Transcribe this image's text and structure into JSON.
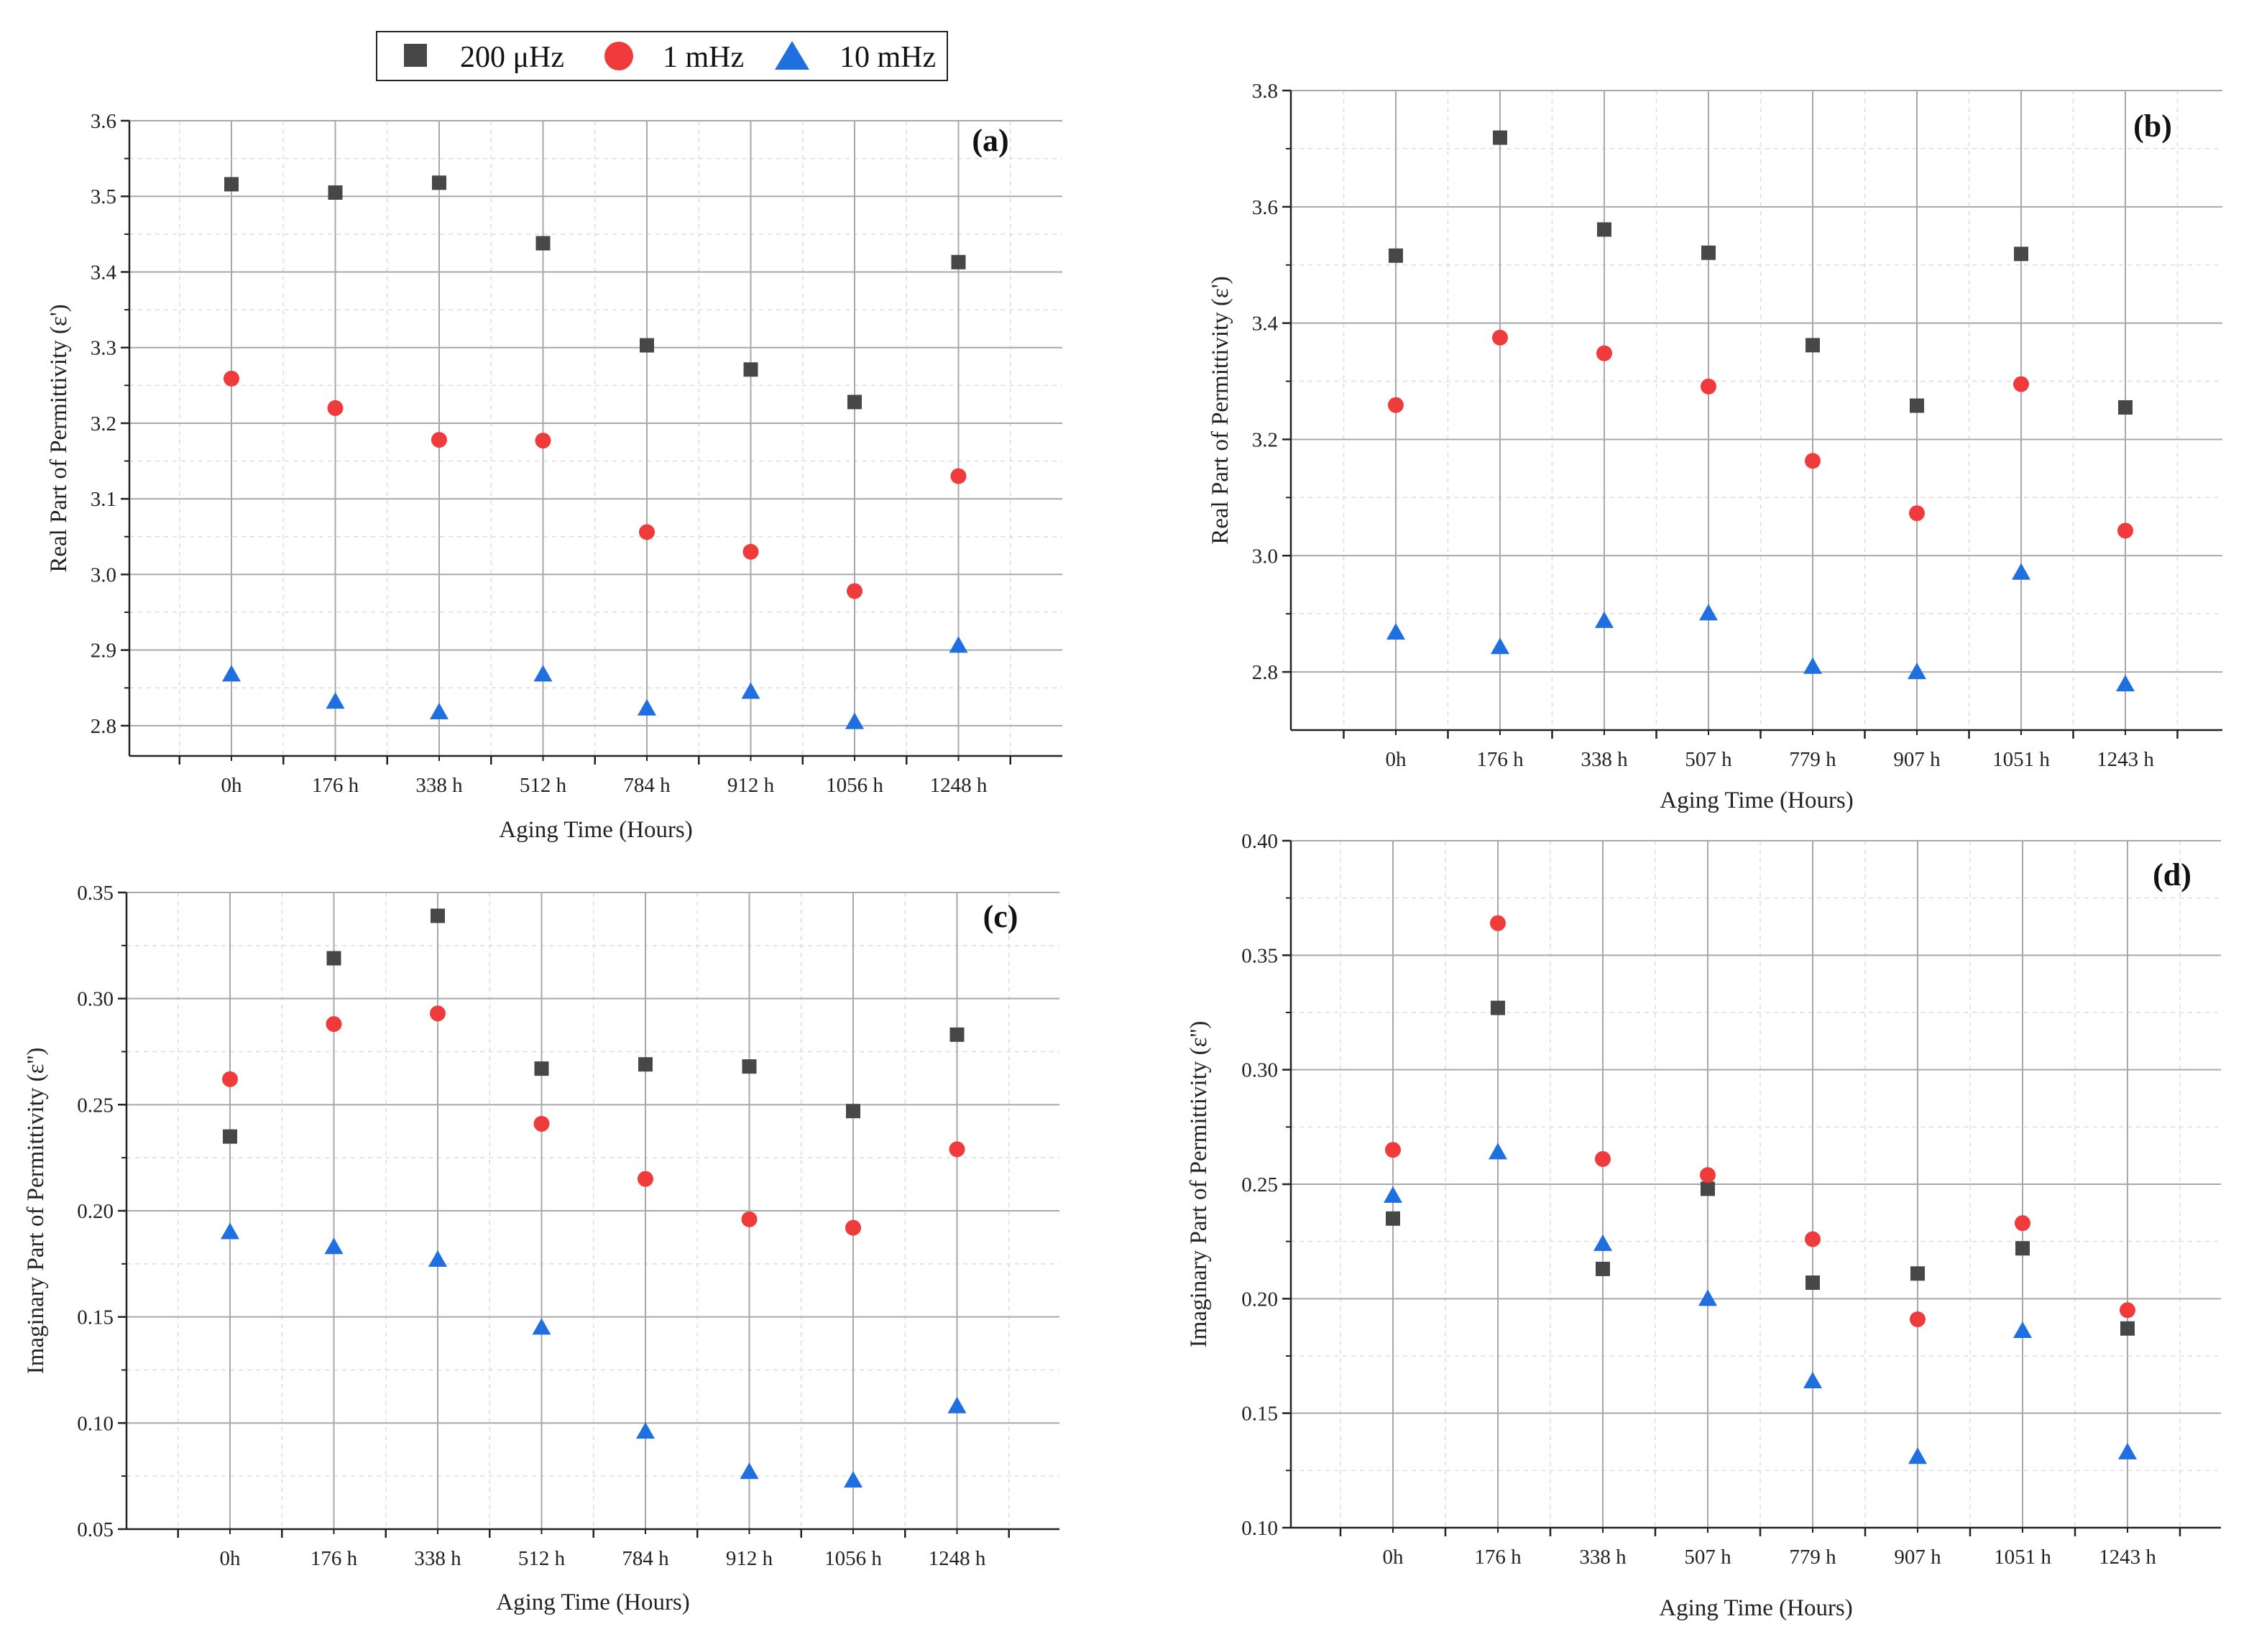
{
  "legend": {
    "items": [
      {
        "label": "200 μHz",
        "color": "#474747",
        "marker": "square"
      },
      {
        "label": "1 mHz",
        "color": "#ef3b3b",
        "marker": "circle"
      },
      {
        "label": "10 mHz",
        "color": "#1f6fe0",
        "marker": "triangle"
      }
    ]
  },
  "chart_data": [
    {
      "panel": "(a)",
      "type": "scatter",
      "xlabel": "Aging Time (Hours)",
      "ylabel": "Real Part of Permittivity (ε')",
      "categories": [
        "0h",
        "176 h",
        "338 h",
        "512 h",
        "784 h",
        "912 h",
        "1056 h",
        "1248 h"
      ],
      "ylim": [
        2.76,
        3.6
      ],
      "yticks": [
        2.8,
        2.9,
        3.0,
        3.1,
        3.2,
        3.3,
        3.4,
        3.5,
        3.6
      ],
      "ytick_labels": [
        "2.8",
        "2.9",
        "3.0",
        "3.1",
        "3.2",
        "3.3",
        "3.4",
        "3.5",
        "3.6"
      ],
      "series": [
        {
          "name": "200 μHz",
          "values": [
            3.516,
            3.505,
            3.518,
            3.438,
            3.303,
            3.271,
            3.228,
            3.413
          ]
        },
        {
          "name": "1 mHz",
          "values": [
            3.259,
            3.22,
            3.178,
            3.177,
            3.056,
            3.03,
            2.978,
            3.13
          ]
        },
        {
          "name": "10 mHz",
          "values": [
            2.868,
            2.832,
            2.818,
            2.868,
            2.823,
            2.845,
            2.805,
            2.906
          ]
        }
      ]
    },
    {
      "panel": "(b)",
      "type": "scatter",
      "xlabel": "Aging Time (Hours)",
      "ylabel": "Real Part of Permittivity (ε')",
      "categories": [
        "0h",
        "176 h",
        "338 h",
        "507 h",
        "779 h",
        "907 h",
        "1051 h",
        "1243 h"
      ],
      "ylim": [
        2.7,
        3.8
      ],
      "yticks": [
        2.8,
        3.0,
        3.2,
        3.4,
        3.6,
        3.8
      ],
      "ytick_labels": [
        "2.8",
        "3.0",
        "3.2",
        "3.4",
        "3.6",
        "3.8"
      ],
      "series": [
        {
          "name": "200 μHz",
          "values": [
            3.516,
            3.719,
            3.561,
            3.521,
            3.362,
            3.258,
            3.519,
            3.255
          ]
        },
        {
          "name": "1 mHz",
          "values": [
            3.259,
            3.375,
            3.348,
            3.291,
            3.163,
            3.073,
            3.295,
            3.043
          ]
        },
        {
          "name": "10 mHz",
          "values": [
            2.868,
            2.843,
            2.888,
            2.901,
            2.809,
            2.8,
            2.971,
            2.779
          ]
        }
      ]
    },
    {
      "panel": "(c)",
      "type": "scatter",
      "xlabel": "Aging Time (Hours)",
      "ylabel": "Imaginary Part of Permittivity (ε'')",
      "categories": [
        "0h",
        "176 h",
        "338 h",
        "512 h",
        "784 h",
        "912 h",
        "1056 h",
        "1248 h"
      ],
      "ylim": [
        0.05,
        0.35
      ],
      "yticks": [
        0.05,
        0.1,
        0.15,
        0.2,
        0.25,
        0.3,
        0.35
      ],
      "ytick_labels": [
        "0.05",
        "0.10",
        "0.15",
        "0.20",
        "0.25",
        "0.30",
        "0.35"
      ],
      "series": [
        {
          "name": "200 μHz",
          "values": [
            0.235,
            0.319,
            0.339,
            0.267,
            0.269,
            0.268,
            0.247,
            0.283
          ]
        },
        {
          "name": "1 mHz",
          "values": [
            0.262,
            0.288,
            0.293,
            0.241,
            0.215,
            0.196,
            0.192,
            0.229
          ]
        },
        {
          "name": "10 mHz",
          "values": [
            0.19,
            0.183,
            0.177,
            0.145,
            0.096,
            0.077,
            0.073,
            0.108
          ]
        }
      ]
    },
    {
      "panel": "(d)",
      "type": "scatter",
      "xlabel": "Aging Time (Hours)",
      "ylabel": "Imaginary Part of Permittivity (ε'')",
      "categories": [
        "0h",
        "176 h",
        "338 h",
        "507 h",
        "779 h",
        "907 h",
        "1051 h",
        "1243 h"
      ],
      "ylim": [
        0.1,
        0.4
      ],
      "yticks": [
        0.1,
        0.15,
        0.2,
        0.25,
        0.3,
        0.35,
        0.4
      ],
      "ytick_labels": [
        "0.10",
        "0.15",
        "0.20",
        "0.25",
        "0.30",
        "0.35",
        "0.40"
      ],
      "series": [
        {
          "name": "200 μHz",
          "values": [
            0.235,
            0.327,
            0.213,
            0.248,
            0.207,
            0.211,
            0.222,
            0.187
          ]
        },
        {
          "name": "1 mHz",
          "values": [
            0.265,
            0.364,
            0.261,
            0.254,
            0.226,
            0.191,
            0.233,
            0.195
          ]
        },
        {
          "name": "10 mHz",
          "values": [
            0.245,
            0.264,
            0.224,
            0.2,
            0.164,
            0.131,
            0.186,
            0.133
          ]
        }
      ]
    }
  ]
}
